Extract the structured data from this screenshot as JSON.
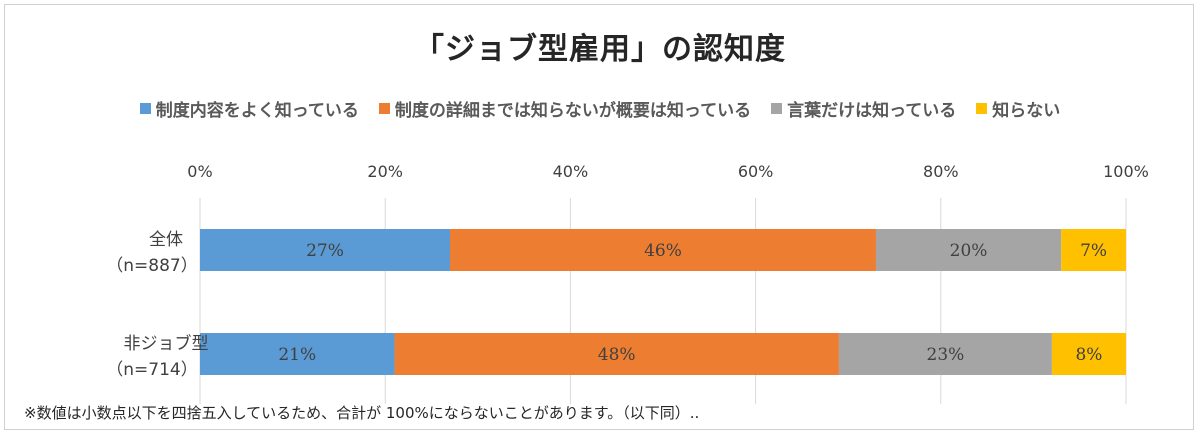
{
  "chart_data": {
    "type": "bar",
    "orientation": "horizontal",
    "stacked": true,
    "title": "「ジョブ型雇用」の認知度",
    "categories": [
      {
        "name": "全体",
        "sub": "（n=887）"
      },
      {
        "name": "非ジョブ型",
        "sub": "（n=714）"
      }
    ],
    "series": [
      {
        "name": "制度内容をよく知っている",
        "color": "#5B9BD5",
        "values": [
          27,
          21
        ],
        "labels": [
          "27%",
          "21%"
        ]
      },
      {
        "name": "制度の詳細までは知らないが概要は知っている",
        "color": "#ED7D31",
        "values": [
          46,
          48
        ],
        "labels": [
          "46%",
          "48%"
        ]
      },
      {
        "name": "言葉だけは知っている",
        "color": "#A5A5A5",
        "values": [
          20,
          23
        ],
        "labels": [
          "20%",
          "23%"
        ]
      },
      {
        "name": "知らない",
        "color": "#FFC000",
        "values": [
          7,
          8
        ],
        "labels": [
          "7%",
          "8%"
        ]
      }
    ],
    "xlim": [
      0,
      100
    ],
    "ticks": [
      "0%",
      "20%",
      "40%",
      "60%",
      "80%",
      "100%"
    ],
    "grid": true,
    "legend_position": "top",
    "note": "※数値は小数点以下を四捨五入しているため、合計が 100%にならないことがあります。（以下同）.."
  }
}
